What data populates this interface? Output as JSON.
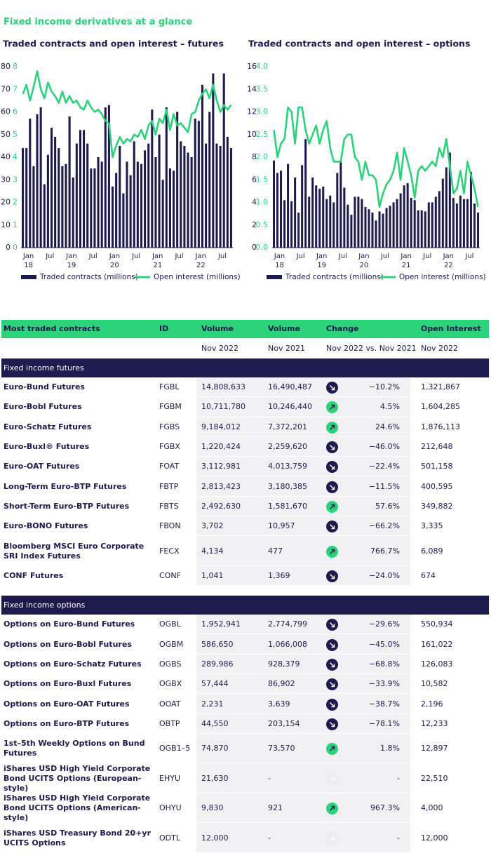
{
  "title": "Fixed income derivatives at a glance",
  "chart_data": [
    {
      "type": "bar-line",
      "title": "Traded contracts and open interest – futures",
      "categories": [
        "Jan\n18",
        null,
        null,
        null,
        null,
        null,
        "Jul",
        null,
        null,
        null,
        null,
        null,
        "Jan\n19",
        null,
        null,
        null,
        null,
        null,
        "Jul",
        null,
        null,
        null,
        null,
        null,
        "Jan\n20",
        null,
        null,
        null,
        null,
        null,
        "Jul",
        null,
        null,
        null,
        null,
        null,
        "Jan\n21",
        null,
        null,
        null,
        null,
        null,
        "Jul",
        null,
        null,
        null,
        null,
        null,
        "Jan\n22",
        null,
        null,
        null,
        null,
        null,
        "Jul",
        null,
        null,
        null,
        null
      ],
      "ylim": [
        0,
        80
      ],
      "yticks": [
        0,
        10,
        20,
        30,
        40,
        50,
        60,
        70,
        80
      ],
      "y2lim": [
        0,
        8
      ],
      "y2ticks": [
        0,
        1,
        2,
        3,
        4,
        5,
        6,
        7,
        8
      ],
      "series": [
        {
          "name": "Traded contracts (millions)",
          "color": "#1d1a4e",
          "values": [
            44,
            44,
            57,
            36,
            59,
            62,
            28,
            41,
            53,
            49,
            44,
            36,
            37,
            58,
            31,
            46,
            52,
            52,
            46,
            35,
            35,
            40,
            38,
            62,
            63,
            27,
            33,
            45,
            24,
            38,
            32,
            47,
            38,
            37,
            43,
            46,
            61,
            40,
            50,
            30,
            62,
            35,
            34,
            60,
            47,
            45,
            42,
            40,
            57,
            56,
            72,
            46,
            60,
            77,
            46,
            45,
            77,
            49,
            44
          ]
        },
        {
          "name": "Open interest (millions)",
          "color": "#2bd27a",
          "axis": "y2",
          "values": [
            6.8,
            7.2,
            6.5,
            7.1,
            7.8,
            7.0,
            6.6,
            7.3,
            6.9,
            6.7,
            6.4,
            6.9,
            6.4,
            6.7,
            6.4,
            6.5,
            6.2,
            6.1,
            6.5,
            6.2,
            6.0,
            6.1,
            5.9,
            5.6,
            5.5,
            4.0,
            4.5,
            4.9,
            4.6,
            4.8,
            4.7,
            5.0,
            4.9,
            5.2,
            4.8,
            5.4,
            5.6,
            5.0,
            5.7,
            5.5,
            6.1,
            5.2,
            5.9,
            5.4,
            5.5,
            5.3,
            5.1,
            5.9,
            6.0,
            6.5,
            6.8,
            7.0,
            6.6,
            7.2,
            6.5,
            6.0,
            6.3,
            6.1,
            6.3
          ]
        }
      ]
    },
    {
      "type": "bar-line",
      "title": "Traded contracts and open interest – options",
      "categories": [
        "Jan\n18",
        null,
        null,
        null,
        null,
        null,
        "Jul",
        null,
        null,
        null,
        null,
        null,
        "Jan\n19",
        null,
        null,
        null,
        null,
        null,
        "Jul",
        null,
        null,
        null,
        null,
        null,
        "Jan\n20",
        null,
        null,
        null,
        null,
        null,
        "Jul",
        null,
        null,
        null,
        null,
        null,
        "Jan\n21",
        null,
        null,
        null,
        null,
        null,
        "Jul",
        null,
        null,
        null,
        null,
        null,
        "Jan\n22",
        null,
        null,
        null,
        null,
        null,
        "Jul",
        null,
        null,
        null,
        null
      ],
      "ylim": [
        0,
        16
      ],
      "yticks": [
        0,
        2,
        4,
        6,
        8,
        10,
        12,
        14,
        16
      ],
      "y2lim": [
        0,
        4
      ],
      "y2ticks": [
        {
          "value": 0,
          "label": "0.0"
        },
        0.5,
        {
          "value": 1,
          "label": "1.0"
        },
        1.5,
        {
          "value": 2,
          "label": "2.0"
        },
        2.5,
        {
          "value": 3,
          "label": "3.0"
        },
        3.5,
        {
          "value": 4,
          "label": "4.0"
        }
      ],
      "series": [
        {
          "name": "Traded contracts (millions)",
          "color": "#1d1a4e",
          "values": [
            7.7,
            6.6,
            6.8,
            4.2,
            7.4,
            4.1,
            6.2,
            3.1,
            7.3,
            9.6,
            4.5,
            6.2,
            5.5,
            5.2,
            5.4,
            4.3,
            4.6,
            4.0,
            6.6,
            7.7,
            5.3,
            3.8,
            2.9,
            4.5,
            4.5,
            4.3,
            3.6,
            3.4,
            3.1,
            2.4,
            3.2,
            3.0,
            3.5,
            3.7,
            4.0,
            4.3,
            4.8,
            5.5,
            5.7,
            4.4,
            4.2,
            3.3,
            3.3,
            3.2,
            4.0,
            4.0,
            4.5,
            5.0,
            6.1,
            7.1,
            8.4,
            4.4,
            3.9,
            4.6,
            4.3,
            4.3,
            6.7,
            3.9,
            3.1
          ]
        },
        {
          "name": "Open interest (millions)",
          "color": "#2bd27a",
          "axis": "y2",
          "values": [
            2.6,
            2.0,
            2.3,
            2.4,
            3.1,
            3.0,
            2.3,
            3.1,
            3.1,
            2.6,
            2.3,
            2.5,
            2.7,
            2.3,
            2.6,
            2.8,
            2.2,
            1.9,
            1.9,
            1.9,
            2.4,
            2.5,
            2.5,
            2.0,
            1.9,
            1.5,
            1.9,
            1.6,
            1.6,
            1.5,
            0.9,
            1.2,
            1.4,
            1.5,
            1.7,
            2.1,
            1.5,
            2.2,
            1.9,
            1.6,
            1.1,
            1.7,
            1.8,
            1.7,
            1.8,
            1.9,
            1.8,
            2.2,
            2.0,
            2.4,
            1.8,
            1.2,
            1.3,
            1.7,
            1.2,
            1.9,
            1.6,
            1.3,
            0.9
          ]
        }
      ]
    }
  ],
  "table": {
    "header": [
      "Most traded contracts",
      "ID",
      "Volume",
      "Volume",
      "Change",
      "Open Interest"
    ],
    "subheader": [
      "Nov 2022",
      "Nov 2021",
      "Nov 2022 vs. Nov 2021",
      "Nov 2022"
    ],
    "sections": [
      {
        "title": "Fixed income futures",
        "rows": [
          [
            "Euro-Bund Futures",
            "FGBL",
            "14,808,633",
            "16,490,487",
            "−10.2%",
            "1,321,867"
          ],
          [
            "Euro-Bobl Futures",
            "FGBM",
            "10,711,780",
            "10,246,440",
            "4.5%",
            "1,604,285"
          ],
          [
            "Euro-Schatz Futures",
            "FGBS",
            "9,184,012",
            "7,372,201",
            "24.6%",
            "1,876,113"
          ],
          [
            "Euro-Buxl® Futures",
            "FGBX",
            "1,220,424",
            "2,259,620",
            "−46.0%",
            "212,648"
          ],
          [
            "Euro-OAT Futures",
            "FOAT",
            "3,112,981",
            "4,013,759",
            "−22.4%",
            "501,158"
          ],
          [
            "Long-Term Euro-BTP Futures",
            "FBTP",
            "2,813,423",
            "3,180,385",
            "−11.5%",
            "400,595"
          ],
          [
            "Short-Term Euro-BTP Futures",
            "FBTS",
            "2,492,630",
            "1,581,670",
            "57.6%",
            "349,882"
          ],
          [
            "Euro-BONO Futures",
            "FBON",
            "3,702",
            "10,957",
            "−66.2%",
            "3,335"
          ],
          [
            "Bloomberg MSCI Euro Corporate SRI Index Futures",
            "FECX",
            "4,134",
            "477",
            "766.7%",
            "6,089"
          ],
          [
            "CONF Futures",
            "CONF",
            "1,041",
            "1,369",
            "−24.0%",
            "674"
          ]
        ]
      },
      {
        "title": "Fixed income options",
        "rows": [
          [
            "Options on Euro-Bund Futures",
            "OGBL",
            "1,952,941",
            "2,774,799",
            "−29.6%",
            "550,934"
          ],
          [
            "Options on Euro-Bobl Futures",
            "OGBM",
            "586,650",
            "1,066,008",
            "−45.0%",
            "161,022"
          ],
          [
            "Options on Euro-Schatz Futures",
            "OGBS",
            "289,986",
            "928,379",
            "−68.8%",
            "126,083"
          ],
          [
            "Options on Euro-Buxl Futures",
            "OGBX",
            "57,444",
            "86,902",
            "−33.9%",
            "10,582"
          ],
          [
            "Options on Euro-OAT Futures",
            "OOAT",
            "2,231",
            "3,639",
            "−38.7%",
            "2,196"
          ],
          [
            "Options on Euro-BTP Futures",
            "OBTP",
            "44,550",
            "203,154",
            "−78.1%",
            "12,233"
          ],
          [
            "1st–5th Weekly Options on Bund Futures",
            "OGB1–5",
            "74,870",
            "73,570",
            "1.8%",
            "12,897"
          ],
          [
            "iShares USD High Yield Corporate Bond UCITS Options (European-style)",
            "EHYU",
            "21,630",
            "-",
            "-",
            "22,510"
          ],
          [
            "iShares USD High Yield Corporate Bond UCITS Options (American-style)",
            "OHYU",
            "9,830",
            "921",
            "967.3%",
            "4,000"
          ],
          [
            "iShares USD Treasury Bond 20+yr UCITS Options",
            "ODTL",
            "12,000",
            "-",
            "-",
            "12,000"
          ]
        ]
      }
    ]
  }
}
